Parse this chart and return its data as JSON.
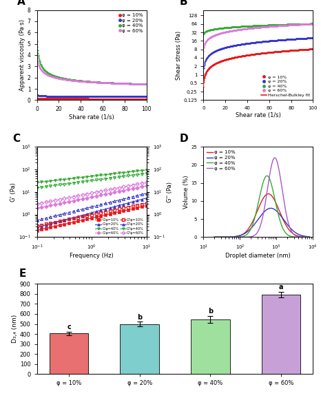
{
  "colors": {
    "red": "#e41a1c",
    "blue": "#3333cc",
    "green": "#33aa33",
    "pink": "#dd77dd",
    "magenta": "#cc44cc"
  },
  "panel_A": {
    "xlabel": "Share rate (1/s)",
    "ylabel": "Apparent viscosity (Pa·s)",
    "xlim": [
      0,
      100
    ],
    "ylim": [
      0,
      8
    ],
    "legend": [
      "φ = 10%",
      "φ = 20%",
      "φ = 40%",
      "φ = 60%"
    ]
  },
  "panel_B": {
    "xlabel": "Shear rate (1/s)",
    "ylabel": "Shear stress (Pa)",
    "xlim": [
      0,
      100
    ],
    "yticks": [
      0.125,
      0.25,
      0.5,
      1,
      2,
      4,
      8,
      16,
      32,
      64,
      128
    ],
    "legend": [
      "φ = 10%",
      "φ = 20%",
      "φ = 40%",
      "φ = 60%",
      "Herschel-Bulkley fit"
    ]
  },
  "panel_C": {
    "xlabel": "Frequency (Hz)",
    "ylabel": "G' (Pa)",
    "ylabel2": "G'' (Pa)",
    "xlim": [
      0.1,
      10
    ],
    "ylim": [
      0.1,
      1000
    ]
  },
  "panel_D": {
    "xlabel": "Droplet diameter (nm)",
    "ylabel": "Volume (%)",
    "ylim": [
      0,
      25
    ],
    "legend": [
      "φ = 10%",
      "φ = 20%",
      "φ = 40%",
      "φ = 60%"
    ]
  },
  "panel_E": {
    "ylabel": "D₃,₄ (nm)",
    "ylim": [
      0,
      900
    ],
    "yticks": [
      0,
      100,
      200,
      300,
      400,
      500,
      600,
      700,
      800,
      900
    ],
    "categories": [
      "φ = 10%",
      "φ = 20%",
      "φ = 40%",
      "φ = 60%"
    ],
    "values": [
      405,
      500,
      545,
      795
    ],
    "errors": [
      18,
      22,
      35,
      28
    ],
    "bar_colors": [
      "#e87070",
      "#7ecece",
      "#9fe09f",
      "#c8a0d8"
    ],
    "letters": [
      "c",
      "b",
      "b",
      "a"
    ]
  }
}
